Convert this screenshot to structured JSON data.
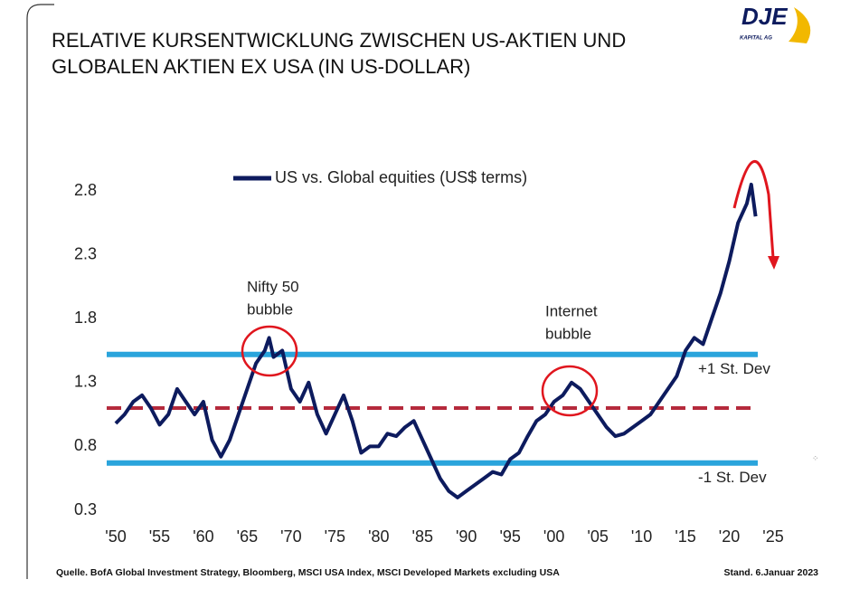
{
  "header": {
    "title": [
      "RELATIVE KURSENTWICKLUNG ZWISCHEN US-AKTIEN UND",
      "GLOBALEN AKTIEN EX USA (IN US-DOLLAR)"
    ],
    "logo": "DJE",
    "logo_sub": "KAPITAL AG"
  },
  "chart_data": {
    "type": "line",
    "x": [
      1950,
      1951,
      1952,
      1953,
      1954,
      1955,
      1956,
      1957,
      1958,
      1959,
      1960,
      1961,
      1962,
      1963,
      1964,
      1965,
      1966,
      1967,
      1967.5,
      1968,
      1969,
      1970,
      1971,
      1972,
      1973,
      1974,
      1975,
      1976,
      1977,
      1978,
      1979,
      1980,
      1981,
      1982,
      1983,
      1984,
      1985,
      1986,
      1987,
      1988,
      1989,
      1990,
      1991,
      1992,
      1993,
      1994,
      1995,
      1996,
      1997,
      1998,
      1999,
      2000,
      2001,
      2002,
      2003,
      2004,
      2005,
      2006,
      2007,
      2008,
      2009,
      2010,
      2011,
      2012,
      2013,
      2014,
      2015,
      2016,
      2017,
      2018,
      2019,
      2020,
      2021,
      2022,
      2022.5,
      2023
    ],
    "series": [
      {
        "name": "US vs. Global equities (US$ terms)",
        "color": "#0d1b5e",
        "values": [
          0.98,
          1.05,
          1.15,
          1.2,
          1.1,
          0.97,
          1.05,
          1.25,
          1.15,
          1.05,
          1.15,
          0.85,
          0.72,
          0.85,
          1.05,
          1.25,
          1.45,
          1.55,
          1.65,
          1.5,
          1.55,
          1.25,
          1.15,
          1.3,
          1.05,
          0.9,
          1.05,
          1.2,
          1.0,
          0.75,
          0.8,
          0.8,
          0.9,
          0.88,
          0.95,
          1.0,
          0.85,
          0.7,
          0.55,
          0.45,
          0.4,
          0.45,
          0.5,
          0.55,
          0.6,
          0.58,
          0.7,
          0.75,
          0.88,
          1.0,
          1.05,
          1.15,
          1.2,
          1.3,
          1.25,
          1.15,
          1.05,
          0.95,
          0.88,
          0.9,
          0.95,
          1.0,
          1.05,
          1.15,
          1.25,
          1.35,
          1.55,
          1.65,
          1.6,
          1.8,
          2.0,
          2.25,
          2.55,
          2.7,
          2.85,
          2.6
        ]
      }
    ],
    "xlim": [
      1950,
      2025
    ],
    "ylim": [
      0.3,
      3.0
    ],
    "xticks": [
      {
        "value": 1950,
        "label": "'50"
      },
      {
        "value": 1955,
        "label": "'55"
      },
      {
        "value": 1960,
        "label": "'60"
      },
      {
        "value": 1965,
        "label": "'65"
      },
      {
        "value": 1970,
        "label": "'70"
      },
      {
        "value": 1975,
        "label": "'75"
      },
      {
        "value": 1980,
        "label": "'80"
      },
      {
        "value": 1985,
        "label": "'85"
      },
      {
        "value": 1990,
        "label": "'90"
      },
      {
        "value": 1995,
        "label": "'95"
      },
      {
        "value": 2000,
        "label": "'00"
      },
      {
        "value": 2005,
        "label": "'05"
      },
      {
        "value": 2010,
        "label": "'10"
      },
      {
        "value": 2015,
        "label": "'15"
      },
      {
        "value": 2020,
        "label": "'20"
      },
      {
        "value": 2025,
        "label": "'25"
      }
    ],
    "yticks": [
      0.3,
      0.8,
      1.3,
      1.8,
      2.3,
      2.8
    ],
    "reference_lines": [
      {
        "value": 1.52,
        "label": "+1 St. Dev",
        "color": "#2aa4dc",
        "dashed": false
      },
      {
        "value": 1.1,
        "color": "#b52a3c",
        "dashed": true
      },
      {
        "value": 0.67,
        "label": "-1 St. Dev",
        "color": "#2aa4dc",
        "dashed": false
      }
    ],
    "annotations": [
      {
        "text": [
          "Nifty 50",
          "bubble"
        ]
      },
      {
        "text": [
          "Internet",
          "bubble"
        ]
      }
    ]
  },
  "footer": {
    "source": "Quelle. BofA Global Investment Strategy, Bloomberg, MSCI USA Index, MSCI Developed Markets excluding USA",
    "date": "Stand. 6.Januar 2023"
  }
}
